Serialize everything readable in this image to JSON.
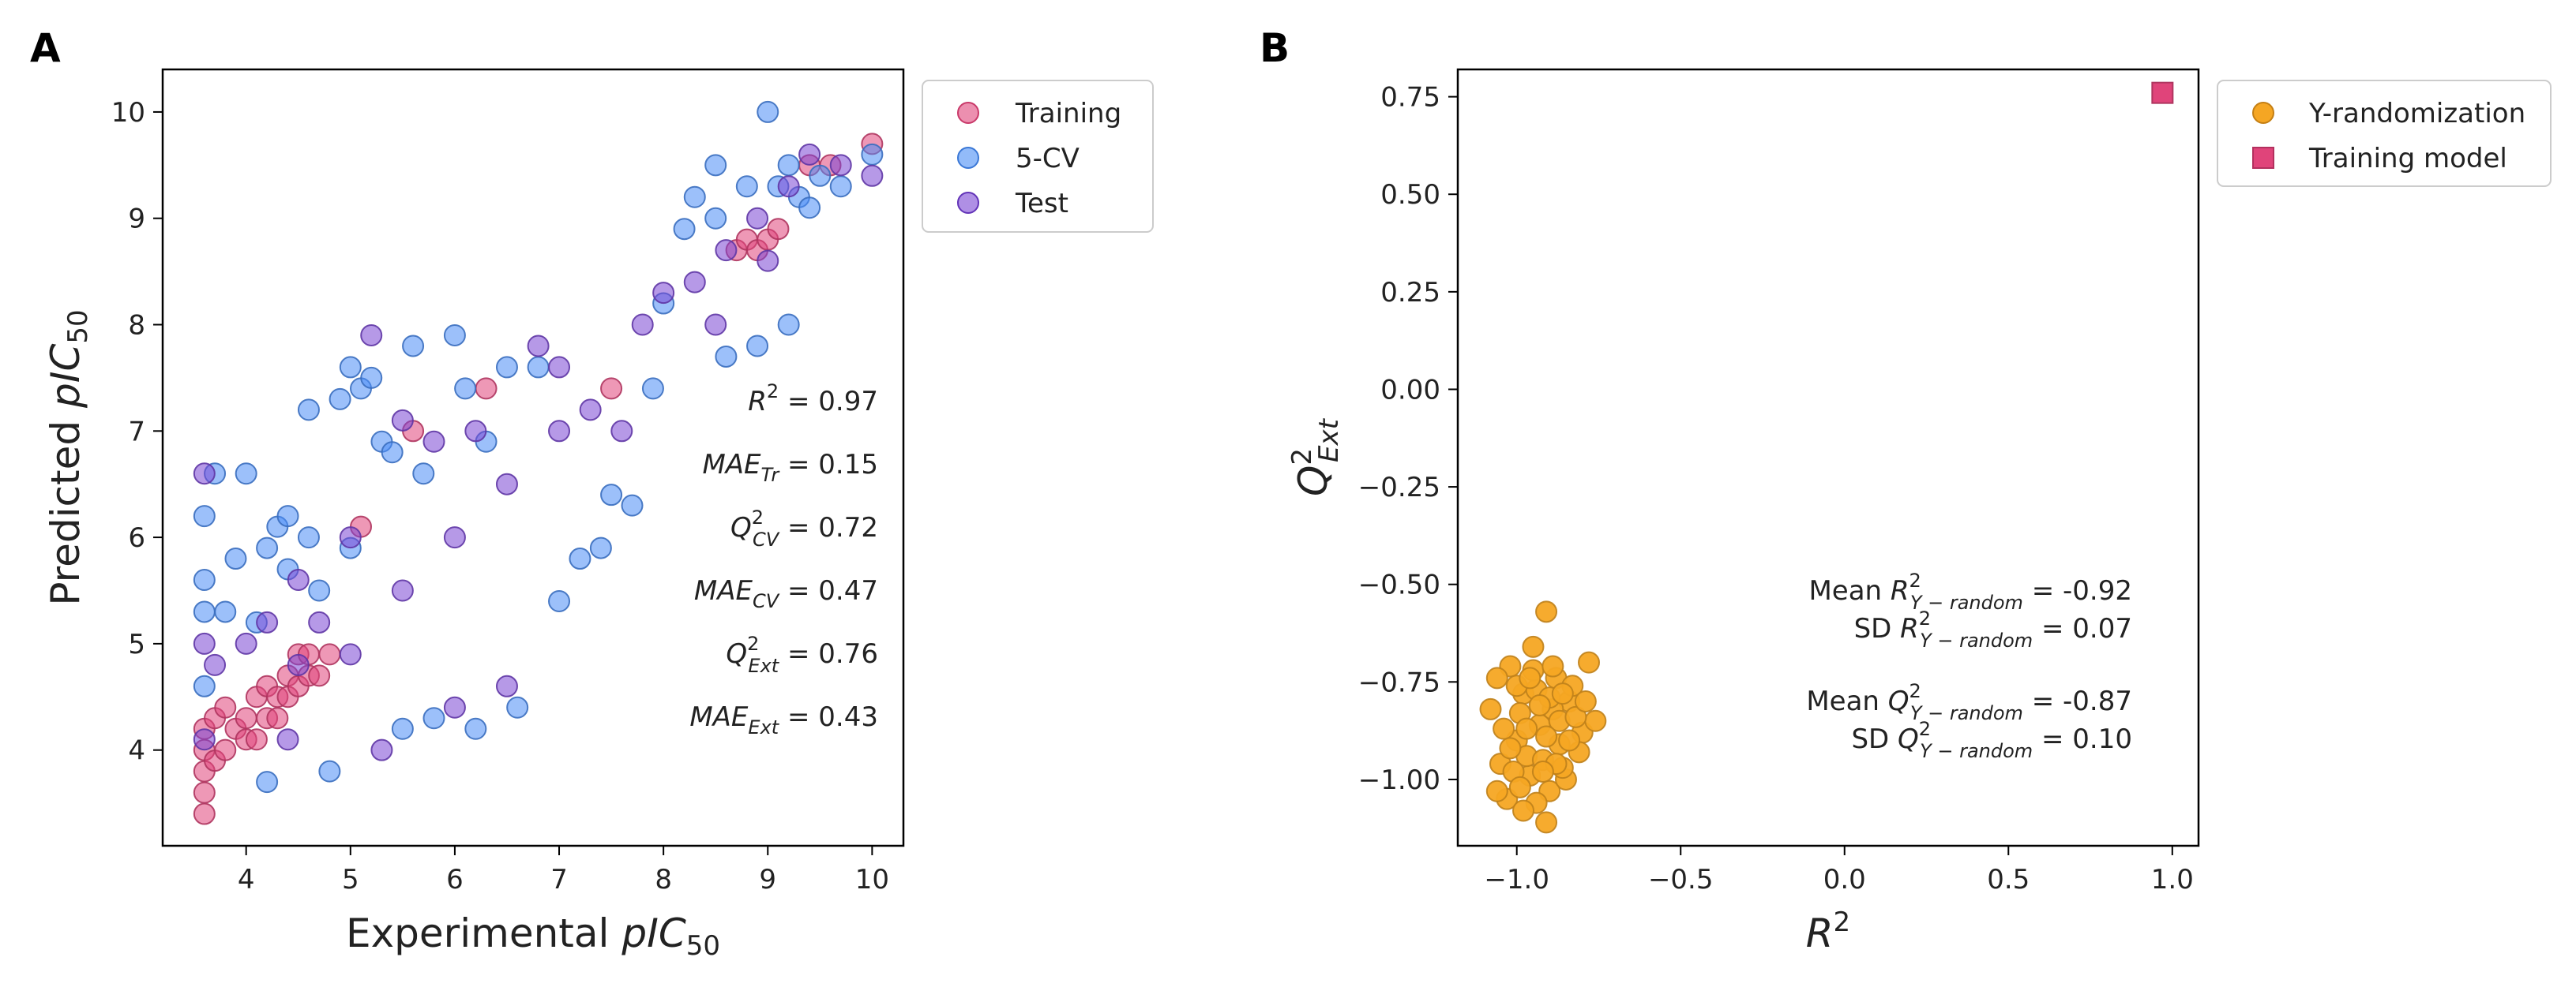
{
  "chart_data": [
    {
      "panel_label": "A",
      "type": "scatter",
      "xlabel": {
        "base": "Experimental ",
        "ital": "pIC",
        "sub": "50"
      },
      "ylabel": {
        "base": "Predicted ",
        "ital": "pIC",
        "sub": "50"
      },
      "xlim": [
        3.2,
        10.3
      ],
      "ylim": [
        3.1,
        10.4
      ],
      "xticks": [
        4,
        5,
        6,
        7,
        8,
        9,
        10
      ],
      "yticks": [
        4,
        5,
        6,
        7,
        8,
        9,
        10
      ],
      "xtick_labels": [
        "4",
        "5",
        "6",
        "7",
        "8",
        "9",
        "10"
      ],
      "ytick_labels": [
        "4",
        "5",
        "6",
        "7",
        "8",
        "9",
        "10"
      ],
      "legend": {
        "position": "outside-right-top",
        "entries": [
          {
            "name": "Training",
            "color": "#e0447a",
            "marker": "circle"
          },
          {
            "name": "5-CV",
            "color": "#4a8df5",
            "marker": "circle"
          },
          {
            "name": "Test",
            "color": "#7a45d4",
            "marker": "circle"
          }
        ]
      },
      "series": [
        {
          "name": "Training",
          "color": "#e0447a",
          "points": [
            [
              3.6,
              3.4
            ],
            [
              3.6,
              3.6
            ],
            [
              3.6,
              3.8
            ],
            [
              3.6,
              4.0
            ],
            [
              3.6,
              4.2
            ],
            [
              3.7,
              4.3
            ],
            [
              3.7,
              3.9
            ],
            [
              3.8,
              4.0
            ],
            [
              3.8,
              4.4
            ],
            [
              3.9,
              4.2
            ],
            [
              4.0,
              4.1
            ],
            [
              4.0,
              4.3
            ],
            [
              4.1,
              4.1
            ],
            [
              4.1,
              4.5
            ],
            [
              4.2,
              4.3
            ],
            [
              4.2,
              4.6
            ],
            [
              4.3,
              4.3
            ],
            [
              4.3,
              4.5
            ],
            [
              4.4,
              4.5
            ],
            [
              4.4,
              4.7
            ],
            [
              4.5,
              4.6
            ],
            [
              4.5,
              4.9
            ],
            [
              4.6,
              4.7
            ],
            [
              4.6,
              4.9
            ],
            [
              4.7,
              4.7
            ],
            [
              4.8,
              4.9
            ],
            [
              5.1,
              6.1
            ],
            [
              5.6,
              7.0
            ],
            [
              6.3,
              7.4
            ],
            [
              7.5,
              7.4
            ],
            [
              8.7,
              8.7
            ],
            [
              8.8,
              8.8
            ],
            [
              8.9,
              8.7
            ],
            [
              9.0,
              8.8
            ],
            [
              9.1,
              8.9
            ],
            [
              9.4,
              9.5
            ],
            [
              9.6,
              9.5
            ],
            [
              10.0,
              9.7
            ]
          ]
        },
        {
          "name": "5-CV",
          "color": "#4a8df5",
          "points": [
            [
              3.6,
              5.6
            ],
            [
              3.6,
              5.3
            ],
            [
              3.6,
              6.2
            ],
            [
              3.6,
              4.6
            ],
            [
              3.7,
              6.6
            ],
            [
              3.8,
              5.3
            ],
            [
              3.9,
              5.8
            ],
            [
              4.0,
              6.6
            ],
            [
              4.1,
              5.2
            ],
            [
              4.2,
              3.7
            ],
            [
              4.3,
              6.1
            ],
            [
              4.4,
              6.2
            ],
            [
              4.6,
              7.2
            ],
            [
              4.7,
              5.5
            ],
            [
              4.8,
              3.8
            ],
            [
              4.9,
              7.3
            ],
            [
              5.0,
              5.9
            ],
            [
              5.1,
              7.4
            ],
            [
              5.2,
              7.5
            ],
            [
              5.3,
              6.9
            ],
            [
              5.5,
              4.2
            ],
            [
              5.6,
              7.8
            ],
            [
              5.7,
              6.6
            ],
            [
              5.8,
              4.3
            ],
            [
              6.0,
              7.9
            ],
            [
              6.1,
              7.4
            ],
            [
              6.2,
              4.2
            ],
            [
              6.3,
              6.9
            ],
            [
              6.5,
              7.6
            ],
            [
              6.6,
              4.4
            ],
            [
              6.8,
              7.6
            ],
            [
              7.0,
              5.4
            ],
            [
              7.2,
              5.8
            ],
            [
              7.4,
              5.9
            ],
            [
              7.5,
              6.4
            ],
            [
              7.7,
              6.3
            ],
            [
              7.9,
              7.4
            ],
            [
              8.0,
              8.2
            ],
            [
              8.2,
              8.9
            ],
            [
              8.3,
              9.2
            ],
            [
              8.5,
              9.0
            ],
            [
              8.6,
              7.7
            ],
            [
              8.8,
              9.3
            ],
            [
              8.9,
              7.8
            ],
            [
              9.0,
              10.0
            ],
            [
              9.1,
              9.3
            ],
            [
              9.2,
              9.5
            ],
            [
              9.3,
              9.2
            ],
            [
              9.4,
              9.1
            ],
            [
              9.5,
              9.4
            ],
            [
              9.7,
              9.3
            ],
            [
              10.0,
              9.6
            ],
            [
              8.5,
              9.5
            ],
            [
              9.2,
              8.0
            ],
            [
              4.2,
              5.9
            ],
            [
              4.4,
              5.7
            ],
            [
              5.0,
              7.6
            ],
            [
              5.4,
              6.8
            ],
            [
              4.6,
              6.0
            ]
          ]
        },
        {
          "name": "Test",
          "color": "#7a45d4",
          "points": [
            [
              3.6,
              6.6
            ],
            [
              3.6,
              5.0
            ],
            [
              3.6,
              4.1
            ],
            [
              3.7,
              4.8
            ],
            [
              4.0,
              5.0
            ],
            [
              4.2,
              5.2
            ],
            [
              4.4,
              4.1
            ],
            [
              4.5,
              5.6
            ],
            [
              4.7,
              5.2
            ],
            [
              5.0,
              6.0
            ],
            [
              5.2,
              7.9
            ],
            [
              5.3,
              4.0
            ],
            [
              5.5,
              7.1
            ],
            [
              5.8,
              6.9
            ],
            [
              6.0,
              4.4
            ],
            [
              6.2,
              7.0
            ],
            [
              6.5,
              4.6
            ],
            [
              6.8,
              7.8
            ],
            [
              7.0,
              7.6
            ],
            [
              7.3,
              7.2
            ],
            [
              7.6,
              7.0
            ],
            [
              7.8,
              8.0
            ],
            [
              8.0,
              8.3
            ],
            [
              8.3,
              8.4
            ],
            [
              8.6,
              8.7
            ],
            [
              8.9,
              9.0
            ],
            [
              9.2,
              9.3
            ],
            [
              9.4,
              9.6
            ],
            [
              9.7,
              9.5
            ],
            [
              10.0,
              9.4
            ],
            [
              7.0,
              7.0
            ],
            [
              6.5,
              6.5
            ],
            [
              6.0,
              6.0
            ],
            [
              5.5,
              5.5
            ],
            [
              8.5,
              8.0
            ],
            [
              9.0,
              8.6
            ],
            [
              5.0,
              4.9
            ],
            [
              4.5,
              4.8
            ]
          ]
        }
      ],
      "annotations": [
        {
          "ital": "R",
          "sup": "2",
          "sub": "",
          "value": " = 0.97"
        },
        {
          "ital": "MAE",
          "sup": "",
          "sub": "Tr",
          "value": " = 0.15"
        },
        {
          "ital": "Q",
          "sup": "2",
          "sub": "CV",
          "value": " = 0.72"
        },
        {
          "ital": "MAE",
          "sup": "",
          "sub": "CV",
          "value": " = 0.47"
        },
        {
          "ital": "Q",
          "sup": "2",
          "sub": "Ext",
          "value": " = 0.76"
        },
        {
          "ital": "MAE",
          "sup": "",
          "sub": "Ext",
          "value": "  = 0.43"
        }
      ]
    },
    {
      "panel_label": "B",
      "type": "scatter",
      "xlabel": {
        "ital": "R",
        "sup": "2"
      },
      "ylabel": {
        "ital": "Q",
        "sup": "2",
        "sub": "Ext"
      },
      "xlim": [
        -1.18,
        1.08
      ],
      "ylim": [
        -1.17,
        0.82
      ],
      "xticks": [
        -1.0,
        -0.5,
        0.0,
        0.5,
        1.0
      ],
      "yticks": [
        -1.0,
        -0.75,
        -0.5,
        -0.25,
        0.0,
        0.25,
        0.5,
        0.75
      ],
      "xtick_labels": [
        "−1.0",
        "−0.5",
        "0.0",
        "0.5",
        "1.0"
      ],
      "ytick_labels": [
        "−1.00",
        "−0.75",
        "−0.50",
        "−0.25",
        "0.00",
        "0.25",
        "0.50",
        "0.75"
      ],
      "legend": {
        "position": "outside-right-top",
        "entries": [
          {
            "name": "Y-randomization",
            "color": "#f5a623",
            "marker": "circle"
          },
          {
            "name": "Training model",
            "color": "#e0447a",
            "marker": "square"
          }
        ]
      },
      "series": [
        {
          "name": "Y-randomization",
          "color": "#f5a623",
          "points": [
            [
              -0.91,
              -0.57
            ],
            [
              -0.95,
              -0.66
            ],
            [
              -1.02,
              -0.71
            ],
            [
              -0.78,
              -0.7
            ],
            [
              -1.08,
              -0.82
            ],
            [
              -0.98,
              -0.78
            ],
            [
              -0.88,
              -0.74
            ],
            [
              -0.84,
              -0.8
            ],
            [
              -0.93,
              -0.86
            ],
            [
              -0.87,
              -0.91
            ],
            [
              -1.0,
              -0.9
            ],
            [
              -1.05,
              -0.96
            ],
            [
              -0.96,
              -0.99
            ],
            [
              -0.9,
              -1.03
            ],
            [
              -0.85,
              -1.0
            ],
            [
              -1.03,
              -1.05
            ],
            [
              -0.91,
              -1.11
            ],
            [
              -0.8,
              -0.88
            ],
            [
              -0.76,
              -0.85
            ],
            [
              -1.06,
              -0.74
            ],
            [
              -0.99,
              -0.83
            ],
            [
              -0.94,
              -0.77
            ],
            [
              -0.89,
              -0.82
            ],
            [
              -0.83,
              -0.76
            ],
            [
              -0.97,
              -0.94
            ],
            [
              -1.01,
              -0.98
            ],
            [
              -0.92,
              -0.95
            ],
            [
              -0.86,
              -0.97
            ],
            [
              -0.81,
              -0.93
            ],
            [
              -1.04,
              -0.87
            ],
            [
              -0.95,
              -0.72
            ],
            [
              -0.9,
              -0.79
            ],
            [
              -0.87,
              -0.85
            ],
            [
              -0.82,
              -0.84
            ],
            [
              -0.99,
              -1.02
            ],
            [
              -0.94,
              -1.06
            ],
            [
              -1.0,
              -0.76
            ],
            [
              -0.93,
              -0.81
            ],
            [
              -0.88,
              -0.96
            ],
            [
              -0.84,
              -0.9
            ],
            [
              -0.79,
              -0.8
            ],
            [
              -1.02,
              -0.92
            ],
            [
              -0.97,
              -0.87
            ],
            [
              -0.91,
              -0.89
            ],
            [
              -0.86,
              -0.78
            ],
            [
              -0.96,
              -0.74
            ],
            [
              -1.06,
              -1.03
            ],
            [
              -0.89,
              -0.71
            ],
            [
              -0.92,
              -0.98
            ],
            [
              -0.98,
              -1.08
            ]
          ]
        },
        {
          "name": "Training model",
          "color": "#e0447a",
          "marker": "square",
          "points": [
            [
              0.97,
              0.76
            ]
          ]
        }
      ],
      "annotations": [
        {
          "pre": "Mean ",
          "ital": "R",
          "sup": "2",
          "sub": "Y − random",
          "value": " = -0.92"
        },
        {
          "pre": "SD ",
          "ital": "R",
          "sup": "2",
          "sub": "Y − random",
          "value": " = 0.07"
        },
        {
          "pre": "Mean ",
          "ital": "Q",
          "sup": "2",
          "sub": "Y − random",
          "value": " = -0.87"
        },
        {
          "pre": "SD ",
          "ital": "Q",
          "sup": "2",
          "sub": "Y − random",
          "value": " = 0.10"
        }
      ]
    }
  ]
}
